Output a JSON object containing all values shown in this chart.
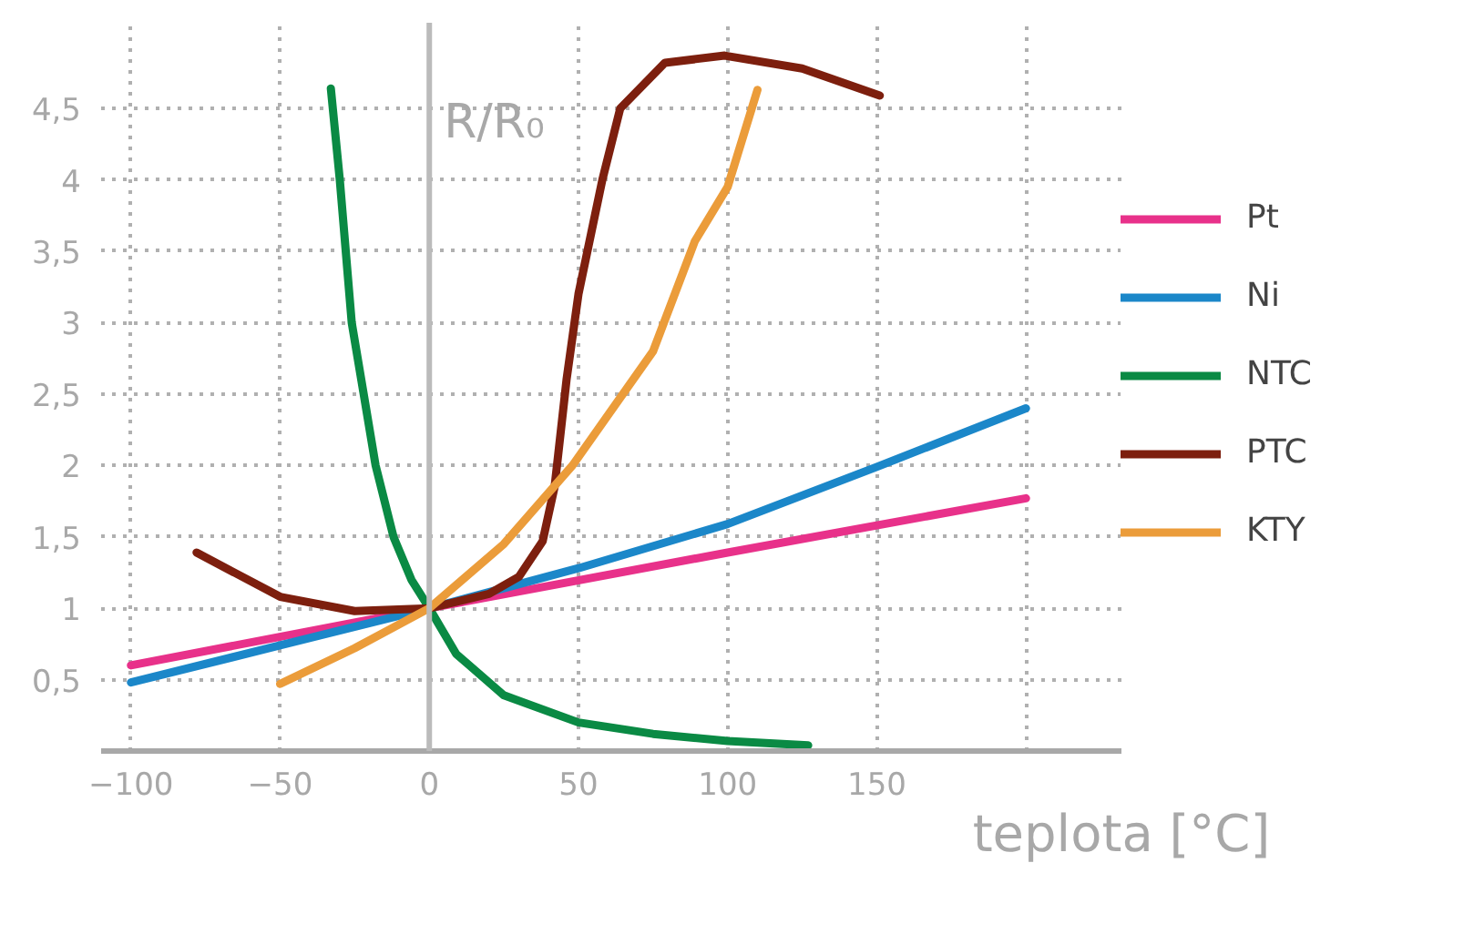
{
  "chart_data": {
    "type": "line",
    "xlabel": "teplota [°C]",
    "ylabel": "R/R₀",
    "xlim": [
      -110,
      232
    ],
    "ylim": [
      0,
      5.1
    ],
    "xticks": [
      -100,
      -50,
      0,
      50,
      100,
      150,
      {
        "value": 200,
        "label": null
      }
    ],
    "yticks": [
      {
        "value": 0.5,
        "label": "0,5"
      },
      {
        "value": 1,
        "label": "1"
      },
      {
        "value": 1.5,
        "label": "1,5"
      },
      {
        "value": 2,
        "label": "2"
      },
      {
        "value": 2.5,
        "label": "2,5"
      },
      {
        "value": 3,
        "label": "3"
      },
      {
        "value": 3.5,
        "label": "3,5"
      },
      {
        "value": 4,
        "label": "4"
      },
      {
        "value": 4.5,
        "label": "4,5"
      }
    ],
    "grid": true,
    "legend": "right",
    "marker": "none",
    "line_style": "solid",
    "ref_lines": [
      {
        "axis": "x",
        "value": 0,
        "label": null,
        "color": "#bbbbbb"
      }
    ],
    "series": [
      {
        "name": "Pt",
        "color": "#e8318a",
        "x": [
          -100,
          0,
          100,
          200
        ],
        "values": [
          0.6,
          1,
          1.39,
          1.77
        ]
      },
      {
        "name": "Ni",
        "color": "#1b87c9",
        "x": [
          -100,
          -50,
          0,
          50,
          100,
          150,
          200
        ],
        "values": [
          0.48,
          0.74,
          1,
          1.28,
          1.59,
          1.99,
          2.4
        ]
      },
      {
        "name": "NTC",
        "color": "#0a8a44",
        "x": [
          -33,
          -30,
          -26,
          -22,
          -18,
          -12,
          -6,
          0,
          9,
          25,
          50,
          75,
          100,
          127
        ],
        "values": [
          4.64,
          4.0,
          3.0,
          2.5,
          2.0,
          1.5,
          1.2,
          1,
          0.68,
          0.39,
          0.2,
          0.12,
          0.07,
          0.04
        ]
      },
      {
        "name": "PTC",
        "color": "#7d1f0e",
        "x": [
          -78,
          -50,
          -25,
          0,
          20,
          30,
          38,
          42,
          46,
          50,
          58,
          64,
          79,
          99,
          125,
          151
        ],
        "values": [
          1.39,
          1.08,
          0.98,
          1,
          1.1,
          1.22,
          1.47,
          1.85,
          2.6,
          3.2,
          4.0,
          4.5,
          4.82,
          4.87,
          4.78,
          4.59
        ]
      },
      {
        "name": "KTY",
        "color": "#eb9c3a",
        "x": [
          -50,
          -25,
          0,
          25,
          48,
          75,
          89,
          100,
          110
        ],
        "values": [
          0.47,
          0.72,
          1,
          1.45,
          2.0,
          2.8,
          3.57,
          3.95,
          4.63
        ]
      }
    ]
  }
}
